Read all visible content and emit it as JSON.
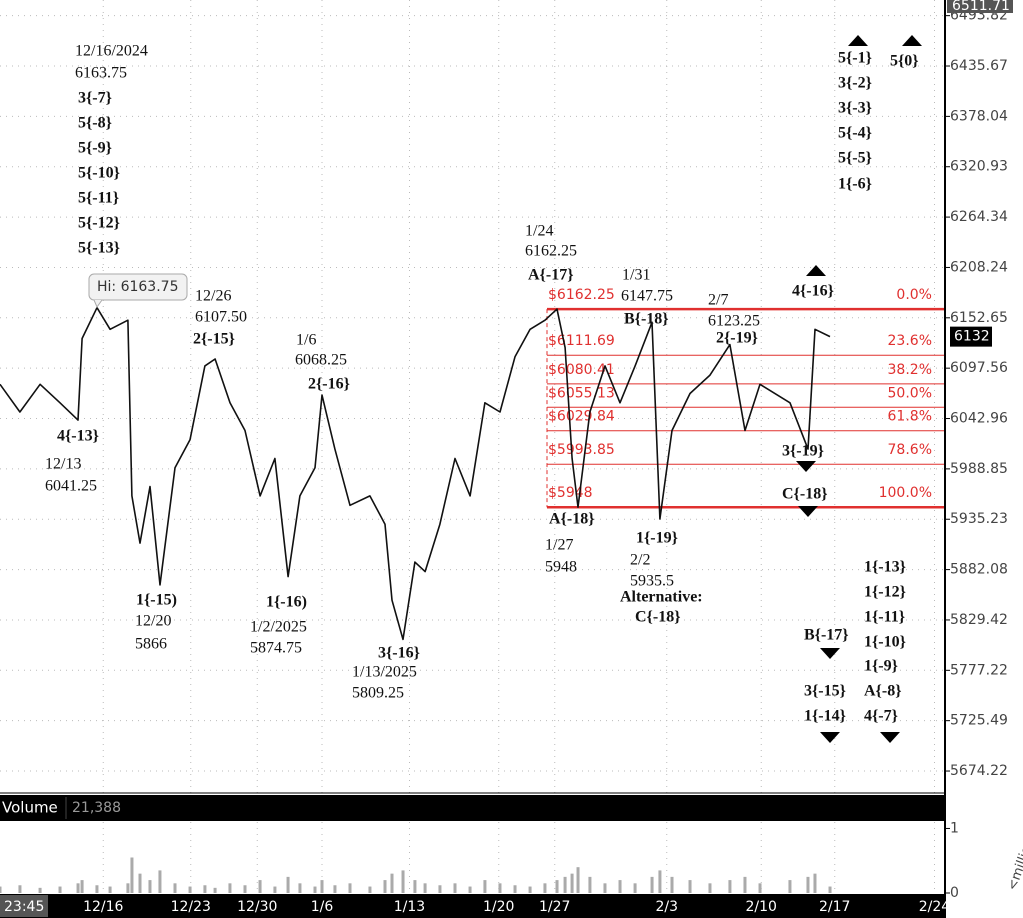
{
  "chart_data": {
    "type": "line",
    "log_scale": true,
    "grid": true,
    "color": "#111111",
    "x": [
      0,
      1.14,
      2.29,
      3.43,
      4.46,
      4.69,
      5.54,
      6.29,
      7.31,
      7.54,
      8,
      8.57,
      9.14,
      10,
      10.86,
      11.71,
      12.29,
      13.14,
      14,
      14.86,
      15.71,
      16.46,
      17.14,
      18,
      18.4,
      19.14,
      20,
      21.14,
      22,
      22.4,
      23.03,
      23.71,
      24.29,
      25.14,
      26,
      26.86,
      27.71,
      28.57,
      29.43,
      30.29,
      31.14,
      31.83,
      32.29,
      32.69,
      33.03,
      33.71,
      34.57,
      35.43,
      36.29,
      37.26,
      37.71,
      38.4,
      39.43,
      40.57,
      41.71,
      42.57,
      43.43,
      45.14,
      46.17,
      46.57,
      47.43
    ],
    "values": [
      6080,
      6050,
      6080,
      6060,
      6041.25,
      6130,
      6163.75,
      6140,
      6150,
      5960,
      5910,
      5970,
      5866,
      5990,
      6020,
      6100,
      6107.5,
      6060,
      6030,
      5960,
      6000,
      5874.75,
      5960,
      5990,
      6068.25,
      6010,
      5950,
      5960,
      5930,
      5850,
      5809.25,
      5890,
      5880,
      5930,
      6000,
      5960,
      6060,
      6050,
      6110,
      6140,
      6150,
      6162.25,
      6120,
      6000,
      5948,
      6050,
      6100,
      6060,
      6100,
      6147.75,
      5935.5,
      6030,
      6070,
      6090,
      6123.25,
      6030,
      6080,
      6060,
      6010,
      6140,
      6132
    ],
    "xlim": [
      0,
      54
    ],
    "xticks": [
      {
        "value": 5.9,
        "label": "12/16"
      },
      {
        "value": 10.9,
        "label": "12/23"
      },
      {
        "value": 14.7,
        "label": "12/30"
      },
      {
        "value": 18.4,
        "label": "1/6"
      },
      {
        "value": 23.4,
        "label": "1/13"
      },
      {
        "value": 28.5,
        "label": "1/20"
      },
      {
        "value": 31.7,
        "label": "1/27"
      },
      {
        "value": 38.1,
        "label": "2/3"
      },
      {
        "value": 43.5,
        "label": "2/10"
      },
      {
        "value": 47.7,
        "label": "2/17"
      },
      {
        "value": 53.4,
        "label": "2/24"
      }
    ],
    "ylim": [
      5652,
      6512
    ],
    "yticks": [
      6493.82,
      6435.67,
      6378.04,
      6320.93,
      6264.34,
      6208.24,
      6152.65,
      6097.56,
      6042.96,
      5988.85,
      5935.23,
      5882.08,
      5829.42,
      5777.22,
      5725.49,
      5674.22
    ],
    "cursor_price": 6511.71,
    "last_price": 6132,
    "cursor_time": "23:45",
    "high_label": "Hi: 6163.75",
    "fib_color": "#e0302f",
    "fib_levels": [
      {
        "label": "0.0%",
        "price": 6162.25,
        "price_label": "$6162.25"
      },
      {
        "label": "23.6%",
        "price": 6111.69,
        "price_label": "$6111.69"
      },
      {
        "label": "38.2%",
        "price": 6080.41,
        "price_label": "$6080.41"
      },
      {
        "label": "50.0%",
        "price": 6055.13,
        "price_label": "$6055.13"
      },
      {
        "label": "61.8%",
        "price": 6029.84,
        "price_label": "$6029.84"
      },
      {
        "label": "78.6%",
        "price": 5993.85,
        "price_label": "$5993.85"
      },
      {
        "label": "100.0%",
        "price": 5948,
        "price_label": "$5948"
      }
    ],
    "annotations": [
      [
        "12/16/2024",
        "6163.75",
        "3{-7}",
        "5{-8}",
        "5{-9}",
        "5{-10}",
        "5{-11}",
        "5{-12}",
        "5{-13}"
      ],
      [
        "12/26",
        "6107.50",
        "2{-15}"
      ],
      [
        "1/6",
        "6068.25",
        "2{-16}"
      ],
      [
        "4{-13}",
        "12/13",
        "6041.25"
      ],
      [
        "1{-15)",
        "12/20",
        "5866"
      ],
      [
        "1{-16)",
        "1/2/2025",
        "5874.75"
      ],
      [
        "3{-16}",
        "1/13/2025",
        "5809.25"
      ],
      [
        "1/24",
        "6162.25",
        "A{-17}"
      ],
      [
        "1/31",
        "6147.75",
        "B{-18}"
      ],
      [
        "2/7",
        "6123.25",
        "2{-19}"
      ],
      [
        "4{-16}"
      ],
      [
        "3{-19}"
      ],
      [
        "C{-18}"
      ],
      [
        "A{-18}",
        "1/27",
        "5948"
      ],
      [
        "1{-19}",
        "2/2",
        "5935.5",
        "Alternative:",
        "C{-18}"
      ],
      [
        "5{-1}",
        "3{-2}",
        "3{-3}",
        "5{-4}",
        "5{-5}",
        "1{-6}"
      ],
      [
        "5{0}"
      ],
      [
        "1{-13}",
        "1{-12}",
        "1{-11}",
        "1{-10}",
        "1{-9}",
        "A{-8}",
        "4{-7}"
      ],
      [
        "B{-17}"
      ],
      [
        "3{-15}",
        "1{-14}"
      ]
    ],
    "volume": {
      "title": "Volume",
      "value_label": "21,388",
      "unit_label": "<millio",
      "color": "#aaaaaa",
      "ylim": [
        0,
        1.1
      ],
      "yticks": [
        0,
        1
      ],
      "values": [
        0.1,
        0.12,
        0.08,
        0.1,
        0.15,
        0.2,
        0.12,
        0.1,
        0.15,
        0.55,
        0.3,
        0.2,
        0.35,
        0.15,
        0.1,
        0.12,
        0.08,
        0.15,
        0.12,
        0.2,
        0.1,
        0.25,
        0.15,
        0.1,
        0.2,
        0.12,
        0.15,
        0.1,
        0.2,
        0.3,
        0.35,
        0.2,
        0.15,
        0.12,
        0.15,
        0.1,
        0.2,
        0.15,
        0.12,
        0.1,
        0.15,
        0.2,
        0.25,
        0.3,
        0.4,
        0.25,
        0.15,
        0.2,
        0.15,
        0.25,
        0.35,
        0.25,
        0.2,
        0.15,
        0.2,
        0.25,
        0.15,
        0.2,
        0.25,
        0.3,
        0.1
      ]
    }
  }
}
